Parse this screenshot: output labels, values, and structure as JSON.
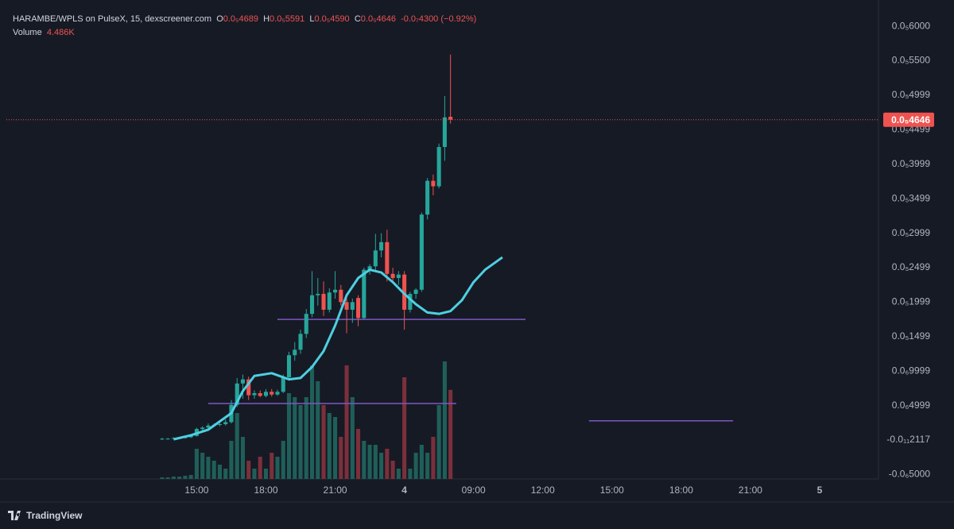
{
  "chart_data": {
    "type": "candlestick",
    "header": {
      "symbol": "HARAMBE/WPLS on PulseX, 15, dexscreener.com",
      "o_key": "O",
      "o": "0.0₅4689",
      "h_key": "H",
      "h": "0.0₅5591",
      "l_key": "L",
      "l": "0.0₅4590",
      "c_key": "C",
      "c": "0.0₅4646",
      "change": "-0.0₇4300 (−0.92%)",
      "volume_key": "Volume",
      "volume": "4.486K"
    },
    "brand": "TradingView",
    "up_color": "#26a69a",
    "down_color": "#ef5350",
    "volume_up_color": "#1f5f59",
    "volume_down_color": "#7b303b",
    "ma_color": "#4dd0e1",
    "level_color": "#7e57c2",
    "open": [
      1e-08,
      2e-08,
      2e-08,
      3e-08,
      3e-08,
      4e-08,
      6e-08,
      1.6e-07,
      1.8e-07,
      2.1e-07,
      2.2e-07,
      2.3e-07,
      2.6e-07,
      5.1e-07,
      8.2e-07,
      8.8e-07,
      6.5e-07,
      6.8e-07,
      6.4e-07,
      7e-07,
      6.6e-07,
      7e-07,
      9.1e-07,
      1.23e-06,
      1.31e-06,
      1.54e-06,
      1.83e-06,
      2.1e-06,
      2.12e-06,
      1.89e-06,
      2.14e-06,
      2.18e-06,
      2e-06,
      1.89e-06,
      2.06e-06,
      1.77e-06,
      2.47e-06,
      2.52e-06,
      2.75e-06,
      2.87e-06,
      2.41e-06,
      2.35e-06,
      2.4e-06,
      1.89e-06,
      2.12e-06,
      2.18e-06,
      3.27e-06,
      3.76e-06,
      3.68e-06,
      4.25e-06,
      4.689e-06
    ],
    "high": [
      3e-08,
      3e-08,
      4e-08,
      4e-08,
      5e-08,
      7e-08,
      1.8e-07,
      2e-07,
      2.4e-07,
      2.4e-07,
      2.7e-07,
      3e-07,
      5.8e-07,
      9e-07,
      9.5e-07,
      9.2e-07,
      7.2e-07,
      7.2e-07,
      7.4e-07,
      7.4e-07,
      7.3e-07,
      9.5e-07,
      1.28e-06,
      1.42e-06,
      1.6e-06,
      1.9e-06,
      2.45e-06,
      2.35e-06,
      2.3e-06,
      2.2e-06,
      2.45e-06,
      2.25e-06,
      2.05e-06,
      2.05e-06,
      2.1e-06,
      2.5e-06,
      2.55e-06,
      2.99e-06,
      3e-06,
      3.05e-06,
      2.5e-06,
      2.45e-06,
      2.45e-06,
      2.15e-06,
      2.2e-06,
      3.3e-06,
      3.8e-06,
      3.85e-06,
      4.3e-06,
      4.99e-06,
      5.591e-06
    ],
    "low": [
      0,
      1e-08,
      1e-08,
      2e-08,
      2e-08,
      3e-08,
      5e-08,
      1.2e-07,
      1.6e-07,
      1.9e-07,
      2e-07,
      2.1e-07,
      2.4e-07,
      4.8e-07,
      6e-07,
      5.8e-07,
      6e-07,
      6.2e-07,
      6.2e-07,
      6.3e-07,
      6.4e-07,
      6.8e-07,
      8.8e-07,
      1.15e-06,
      1.25e-06,
      1.48e-06,
      1.78e-06,
      1.95e-06,
      1.8e-06,
      1.85e-06,
      2.05e-06,
      1.95e-06,
      1.55e-06,
      1.7e-06,
      1.65e-06,
      1.75e-06,
      2.4e-06,
      2.45e-06,
      2.65e-06,
      2.3e-06,
      2.3e-06,
      2.25e-06,
      1.6e-06,
      1.85e-06,
      2.05e-06,
      2.15e-06,
      3.2e-06,
      3.55e-06,
      3.65e-06,
      4.05e-06,
      4.59e-06
    ],
    "close": [
      2e-08,
      2e-08,
      3e-08,
      3e-08,
      4e-08,
      6e-08,
      1.6e-07,
      1.8e-07,
      2.1e-07,
      2.2e-07,
      2.3e-07,
      2.6e-07,
      5.1e-07,
      8.2e-07,
      8.8e-07,
      6.5e-07,
      6.8e-07,
      6.4e-07,
      7e-07,
      6.6e-07,
      7e-07,
      9.1e-07,
      1.23e-06,
      1.31e-06,
      1.54e-06,
      1.83e-06,
      2.1e-06,
      2.12e-06,
      1.89e-06,
      2.14e-06,
      2.18e-06,
      2e-06,
      1.89e-06,
      2e-06,
      1.77e-06,
      2.47e-06,
      2.52e-06,
      2.75e-06,
      2.87e-06,
      2.41e-06,
      2.35e-06,
      2.4e-06,
      1.89e-06,
      2.12e-06,
      2.18e-06,
      3.27e-06,
      3.76e-06,
      3.68e-06,
      4.25e-06,
      4.68e-06,
      4.646e-06
    ],
    "volume": [
      80,
      80,
      120,
      120,
      160,
      200,
      1520,
      1320,
      1120,
      920,
      720,
      520,
      1920,
      3320,
      2120,
      920,
      520,
      1120,
      520,
      1320,
      1120,
      1920,
      4320,
      4120,
      3720,
      4120,
      5720,
      4920,
      3720,
      3320,
      3120,
      2120,
      5720,
      4120,
      2520,
      1920,
      1720,
      1720,
      1320,
      1520,
      920,
      520,
      5120,
      520,
      1320,
      1720,
      1320,
      2120,
      3720,
      5920,
      4486
    ],
    "ma_x": [
      2,
      5,
      8,
      12,
      14,
      16,
      19,
      22,
      24,
      26,
      28,
      30,
      32,
      34,
      36,
      38,
      40,
      42,
      44,
      46,
      48,
      50,
      52,
      54,
      56,
      58,
      59
    ],
    "ma_values": [
      1e-08,
      7e-08,
      1.5e-07,
      3.9e-07,
      7.1e-07,
      9.3e-07,
      9.7e-07,
      8.8e-07,
      9e-07,
      1.06e-06,
      1.29e-06,
      1.66e-06,
      2.1e-06,
      2.35e-06,
      2.47e-06,
      2.43e-06,
      2.29e-06,
      2.12e-06,
      1.97e-06,
      1.85e-06,
      1.83e-06,
      1.87e-06,
      2.03e-06,
      2.29e-06,
      2.47e-06,
      2.59e-06,
      2.65e-06
    ],
    "levels": [
      {
        "value": 1.75e-06,
        "x": [
          20,
          63
        ]
      },
      {
        "value": 5.3e-07,
        "x": [
          8,
          51
        ]
      },
      {
        "value": 2.8e-07,
        "x": [
          74,
          99
        ]
      }
    ],
    "last_price": {
      "value": 4.646e-06,
      "label": "0.0₅4646"
    },
    "xlim": [
      -27,
      124.2
    ],
    "xticks": [
      {
        "value": 6,
        "label": "15:00"
      },
      {
        "value": 18,
        "label": "18:00"
      },
      {
        "value": 30,
        "label": "21:00"
      },
      {
        "value": 42,
        "label": "4"
      },
      {
        "value": 54,
        "label": "09:00"
      },
      {
        "value": 66,
        "label": "12:00"
      },
      {
        "value": 78,
        "label": "15:00"
      },
      {
        "value": 90,
        "label": "18:00"
      },
      {
        "value": 102,
        "label": "21:00"
      },
      {
        "value": 114,
        "label": "5"
      }
    ],
    "ylim": [
      -5.645e-07,
      6.29e-06
    ],
    "yticks": [
      {
        "value": 6e-06,
        "label": "0.0₅6000"
      },
      {
        "value": 5.5e-06,
        "label": "0.0₅5500"
      },
      {
        "value": 4.999e-06,
        "label": "0.0₅4999"
      },
      {
        "value": 4.499e-06,
        "label": "0.0₅4499"
      },
      {
        "value": 3.999e-06,
        "label": "0.0₅3999"
      },
      {
        "value": 3.499e-06,
        "label": "0.0₅3499"
      },
      {
        "value": 2.999e-06,
        "label": "0.0₅2999"
      },
      {
        "value": 2.499e-06,
        "label": "0.0₅2499"
      },
      {
        "value": 1.999e-06,
        "label": "0.0₅1999"
      },
      {
        "value": 1.499e-06,
        "label": "0.0₅1499"
      },
      {
        "value": 9.999e-07,
        "label": "0.0₆9999"
      },
      {
        "value": 4.999e-07,
        "label": "0.0₆4999"
      },
      {
        "value": -2.117e-12,
        "label": "-0.0₁₁2117"
      },
      {
        "value": -5e-07,
        "label": "-0.0₆5000"
      }
    ]
  }
}
